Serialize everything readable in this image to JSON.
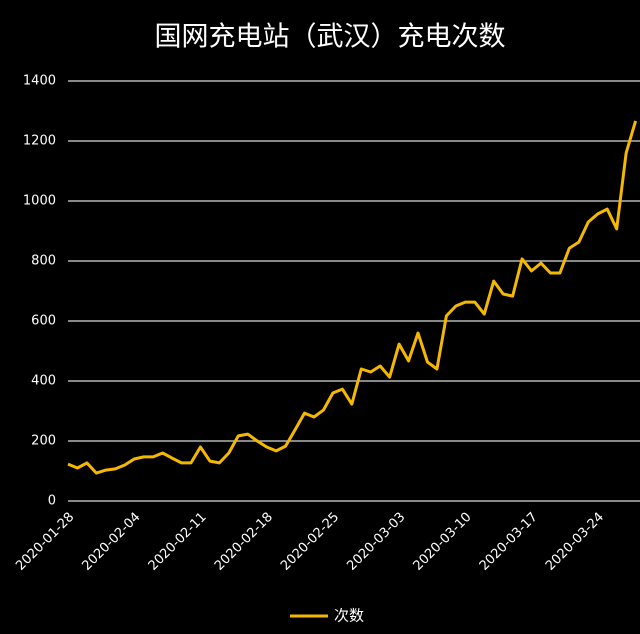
{
  "chart_data": {
    "type": "line",
    "title": "国网充电站（武汉）充电次数",
    "categories": [
      "2020-01-28",
      null,
      null,
      null,
      null,
      null,
      null,
      "2020-02-04",
      null,
      null,
      null,
      null,
      null,
      null,
      "2020-02-11",
      null,
      null,
      null,
      null,
      null,
      null,
      "2020-02-18",
      null,
      null,
      null,
      null,
      null,
      null,
      "2020-02-25",
      null,
      null,
      null,
      null,
      null,
      null,
      "2020-03-03",
      null,
      null,
      null,
      null,
      null,
      null,
      "2020-03-10",
      null,
      null,
      null,
      null,
      null,
      null,
      "2020-03-17",
      null,
      null,
      null,
      null,
      null,
      null,
      "2020-03-24",
      null,
      null,
      null,
      null
    ],
    "series": [
      {
        "name": "次数",
        "color": "#f5b800",
        "values": [
          123,
          110,
          127,
          93,
          103,
          107,
          120,
          140,
          147,
          147,
          160,
          143,
          127,
          127,
          180,
          133,
          127,
          160,
          217,
          223,
          200,
          180,
          167,
          183,
          237,
          293,
          280,
          303,
          360,
          373,
          323,
          440,
          430,
          450,
          413,
          523,
          467,
          560,
          463,
          440,
          617,
          650,
          663,
          663,
          623,
          733,
          690,
          683,
          807,
          767,
          793,
          760,
          760,
          843,
          863,
          930,
          957,
          973,
          907,
          1160,
          1267
        ]
      }
    ],
    "ylim": [
      0,
      1400
    ],
    "yticks": [
      0,
      200,
      400,
      600,
      800,
      1000,
      1200,
      1400
    ],
    "grid": true,
    "legend": "bottom"
  }
}
